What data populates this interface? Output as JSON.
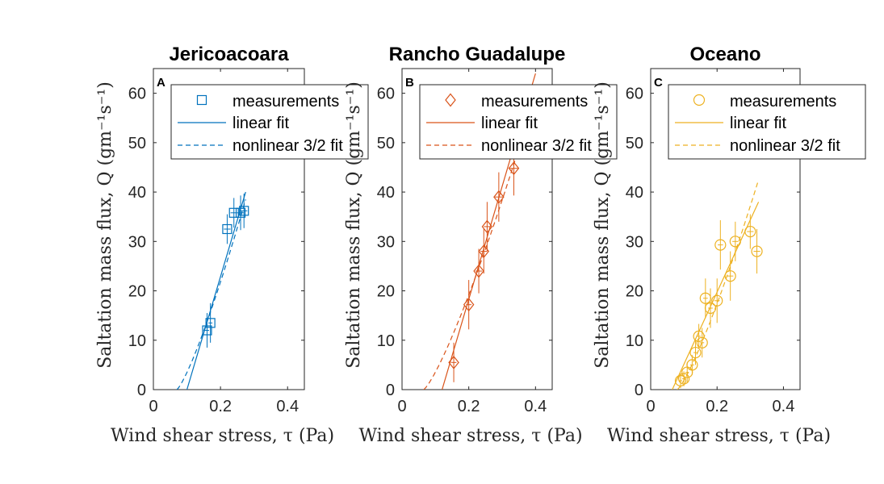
{
  "chart_data": [
    {
      "type": "scatter",
      "title": "Jericoacoara",
      "panel_letter": "A",
      "color": "#0072BD",
      "marker": "square",
      "xlabel": "Wind shear stress, τ (Pa)",
      "ylabel": "Saltation mass flux, Q (gm⁻¹s⁻¹)",
      "xlim": [
        0,
        0.45
      ],
      "ylim": [
        0,
        65
      ],
      "xticks": [
        0,
        0.2,
        0.4
      ],
      "xtick_labels": [
        "0",
        "0.2",
        "0.4"
      ],
      "yticks": [
        0,
        10,
        20,
        30,
        40,
        50,
        60
      ],
      "ytick_labels": [
        "0",
        "10",
        "20",
        "30",
        "40",
        "50",
        "60"
      ],
      "legend": [
        "measurements",
        "linear fit",
        "nonlinear 3/2 fit"
      ],
      "legend_position": "top-right",
      "points": [
        {
          "x": 0.16,
          "y": 12.0,
          "xerr": 0.006,
          "yerr": 3.5
        },
        {
          "x": 0.17,
          "y": 13.5,
          "xerr": 0.006,
          "yerr": 4.0
        },
        {
          "x": 0.22,
          "y": 32.5,
          "xerr": 0.01,
          "yerr": 3.0
        },
        {
          "x": 0.24,
          "y": 35.8,
          "xerr": 0.01,
          "yerr": 3.0
        },
        {
          "x": 0.26,
          "y": 35.8,
          "xerr": 0.01,
          "yerr": 3.5
        },
        {
          "x": 0.27,
          "y": 36.2,
          "xerr": 0.01,
          "yerr": 3.5
        }
      ],
      "linear_fit": {
        "x": [
          0.1,
          0.275
        ],
        "y": [
          0,
          40
        ]
      },
      "nonlinear_fit": {
        "x": [
          0.07,
          0.275
        ],
        "y": [
          0,
          38.5
        ]
      }
    },
    {
      "type": "scatter",
      "title": "Rancho Guadalupe",
      "panel_letter": "B",
      "color": "#D95319",
      "marker": "diamond",
      "xlabel": "Wind shear stress, τ (Pa)",
      "ylabel": "Saltation mass flux, Q (gm⁻¹s⁻¹)",
      "xlim": [
        0,
        0.45
      ],
      "ylim": [
        0,
        65
      ],
      "xticks": [
        0,
        0.2,
        0.4
      ],
      "xtick_labels": [
        "0",
        "0.2",
        "0.4"
      ],
      "yticks": [
        0,
        10,
        20,
        30,
        40,
        50,
        60
      ],
      "ytick_labels": [
        "0",
        "10",
        "20",
        "30",
        "40",
        "50",
        "60"
      ],
      "legend": [
        "measurements",
        "linear fit",
        "nonlinear 3/2 fit"
      ],
      "legend_position": "top-right",
      "points": [
        {
          "x": 0.155,
          "y": 5.5,
          "xerr": 0.008,
          "yerr": 4.0
        },
        {
          "x": 0.2,
          "y": 17.2,
          "xerr": 0.008,
          "yerr": 5.0
        },
        {
          "x": 0.23,
          "y": 24.0,
          "xerr": 0.01,
          "yerr": 4.5
        },
        {
          "x": 0.245,
          "y": 28.0,
          "xerr": 0.01,
          "yerr": 4.5
        },
        {
          "x": 0.255,
          "y": 33.0,
          "xerr": 0.01,
          "yerr": 5.0
        },
        {
          "x": 0.29,
          "y": 39.0,
          "xerr": 0.012,
          "yerr": 5.0
        },
        {
          "x": 0.335,
          "y": 44.8,
          "xerr": 0.012,
          "yerr": 5.5
        }
      ],
      "linear_fit": {
        "x": [
          0.12,
          0.4
        ],
        "y": [
          0,
          64
        ]
      },
      "nonlinear_fit": {
        "x": [
          0.065,
          0.36
        ],
        "y": [
          0,
          51
        ]
      }
    },
    {
      "type": "scatter",
      "title": "Oceano",
      "panel_letter": "C",
      "color": "#EDB120",
      "marker": "circle",
      "xlabel": "Wind shear stress, τ (Pa)",
      "ylabel": "Saltation mass flux, Q (gm⁻¹s⁻¹)",
      "xlim": [
        0,
        0.45
      ],
      "ylim": [
        0,
        65
      ],
      "xticks": [
        0,
        0.2,
        0.4
      ],
      "xtick_labels": [
        "0",
        "0.2",
        "0.4"
      ],
      "yticks": [
        0,
        10,
        20,
        30,
        40,
        50,
        60
      ],
      "ytick_labels": [
        "0",
        "10",
        "20",
        "30",
        "40",
        "50",
        "60"
      ],
      "legend": [
        "measurements",
        "linear fit",
        "nonlinear 3/2 fit"
      ],
      "legend_position": "top-right",
      "points": [
        {
          "x": 0.09,
          "y": 1.8,
          "xerr": 0.005,
          "yerr": 1.5
        },
        {
          "x": 0.1,
          "y": 2.2,
          "xerr": 0.005,
          "yerr": 1.5
        },
        {
          "x": 0.11,
          "y": 3.5,
          "xerr": 0.005,
          "yerr": 2.0
        },
        {
          "x": 0.125,
          "y": 5.0,
          "xerr": 0.006,
          "yerr": 2.0
        },
        {
          "x": 0.135,
          "y": 7.5,
          "xerr": 0.006,
          "yerr": 2.5
        },
        {
          "x": 0.145,
          "y": 10.8,
          "xerr": 0.006,
          "yerr": 2.5
        },
        {
          "x": 0.155,
          "y": 9.5,
          "xerr": 0.006,
          "yerr": 3.0
        },
        {
          "x": 0.165,
          "y": 18.5,
          "xerr": 0.007,
          "yerr": 4.0
        },
        {
          "x": 0.18,
          "y": 16.5,
          "xerr": 0.007,
          "yerr": 4.0
        },
        {
          "x": 0.2,
          "y": 18.0,
          "xerr": 0.008,
          "yerr": 4.5
        },
        {
          "x": 0.21,
          "y": 29.3,
          "xerr": 0.008,
          "yerr": 5.0
        },
        {
          "x": 0.24,
          "y": 23.0,
          "xerr": 0.009,
          "yerr": 5.0
        },
        {
          "x": 0.255,
          "y": 30.0,
          "xerr": 0.009,
          "yerr": 4.0
        },
        {
          "x": 0.3,
          "y": 32.0,
          "xerr": 0.01,
          "yerr": 3.5
        },
        {
          "x": 0.32,
          "y": 28.0,
          "xerr": 0.01,
          "yerr": 4.5
        }
      ],
      "linear_fit": {
        "x": [
          0.065,
          0.325
        ],
        "y": [
          0,
          38
        ]
      },
      "nonlinear_fit": {
        "x": [
          0.08,
          0.325
        ],
        "y": [
          0,
          42.5
        ]
      }
    }
  ]
}
